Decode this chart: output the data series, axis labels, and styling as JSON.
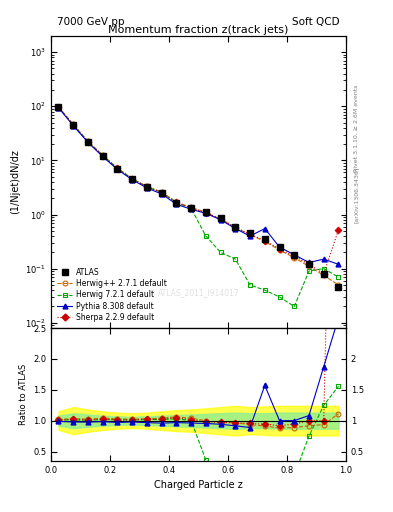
{
  "title_main": "Momentum fraction z(track jets)",
  "header_left": "7000 GeV pp",
  "header_right": "Soft QCD",
  "ylabel_main": "(1/Njet)dN/dz",
  "ylabel_ratio": "Ratio to ATLAS",
  "xlabel": "Charged Particle z",
  "right_label_top": "Rivet 3.1.10, ≥ 2.6M events",
  "right_label_bot": "[arXiv:1306.3436]",
  "watermark": "ATLAS_2011_I914017",
  "xlim": [
    0,
    1.0
  ],
  "ylim_main": [
    0.008,
    2000
  ],
  "ylim_ratio": [
    0.35,
    2.5
  ],
  "atlas_x": [
    0.025,
    0.075,
    0.125,
    0.175,
    0.225,
    0.275,
    0.325,
    0.375,
    0.425,
    0.475,
    0.525,
    0.575,
    0.625,
    0.675,
    0.725,
    0.775,
    0.825,
    0.875,
    0.925,
    0.975
  ],
  "atlas_y": [
    95.0,
    45.0,
    22.0,
    12.0,
    7.0,
    4.5,
    3.2,
    2.5,
    1.6,
    1.3,
    1.1,
    0.85,
    0.6,
    0.45,
    0.35,
    0.25,
    0.18,
    0.12,
    0.08,
    0.045
  ],
  "atlas_yerr": [
    5.0,
    2.5,
    1.2,
    0.6,
    0.35,
    0.22,
    0.16,
    0.12,
    0.08,
    0.065,
    0.055,
    0.042,
    0.03,
    0.023,
    0.018,
    0.013,
    0.009,
    0.006,
    0.004,
    0.003
  ],
  "herwig_x": [
    0.025,
    0.075,
    0.125,
    0.175,
    0.225,
    0.275,
    0.325,
    0.375,
    0.425,
    0.475,
    0.525,
    0.575,
    0.625,
    0.675,
    0.725,
    0.775,
    0.825,
    0.875,
    0.925,
    0.975
  ],
  "herwig_y": [
    97.0,
    46.5,
    22.5,
    12.5,
    7.2,
    4.6,
    3.3,
    2.6,
    1.7,
    1.35,
    1.1,
    0.82,
    0.58,
    0.42,
    0.32,
    0.22,
    0.16,
    0.11,
    0.075,
    0.05
  ],
  "herwig7_x": [
    0.025,
    0.075,
    0.125,
    0.175,
    0.225,
    0.275,
    0.325,
    0.375,
    0.425,
    0.475,
    0.525,
    0.575,
    0.625,
    0.675,
    0.725,
    0.775,
    0.825,
    0.875,
    0.925,
    0.975
  ],
  "herwig7_y": [
    96.0,
    45.5,
    22.2,
    12.2,
    7.1,
    4.55,
    3.25,
    2.55,
    1.65,
    1.3,
    0.4,
    0.2,
    0.15,
    0.05,
    0.04,
    0.03,
    0.02,
    0.09,
    0.1,
    0.07
  ],
  "pythia_x": [
    0.025,
    0.075,
    0.125,
    0.175,
    0.225,
    0.275,
    0.325,
    0.375,
    0.425,
    0.475,
    0.525,
    0.575,
    0.625,
    0.675,
    0.725,
    0.775,
    0.825,
    0.875,
    0.925,
    0.975
  ],
  "pythia_y": [
    94.0,
    44.0,
    21.5,
    11.8,
    6.8,
    4.4,
    3.1,
    2.4,
    1.55,
    1.25,
    1.05,
    0.8,
    0.55,
    0.4,
    0.55,
    0.25,
    0.18,
    0.13,
    0.15,
    0.12
  ],
  "sherpa_x": [
    0.025,
    0.075,
    0.125,
    0.175,
    0.225,
    0.275,
    0.325,
    0.375,
    0.425,
    0.475,
    0.525,
    0.575,
    0.625,
    0.675,
    0.725,
    0.775,
    0.825,
    0.875,
    0.925,
    0.975
  ],
  "sherpa_y": [
    96.0,
    46.0,
    22.3,
    12.3,
    7.1,
    4.55,
    3.28,
    2.55,
    1.68,
    1.32,
    1.08,
    0.83,
    0.58,
    0.43,
    0.33,
    0.23,
    0.17,
    0.12,
    0.08,
    0.52
  ],
  "color_atlas": "#000000",
  "color_herwig": "#cc6600",
  "color_herwig7": "#00aa00",
  "color_pythia": "#0000cc",
  "color_sherpa": "#cc0000",
  "band_green_lo": [
    0.92,
    0.88,
    0.9,
    0.92,
    0.93,
    0.94,
    0.93,
    0.92,
    0.91,
    0.9,
    0.89,
    0.88,
    0.87,
    0.88,
    0.88,
    0.87,
    0.87,
    0.87,
    0.87,
    0.87
  ],
  "band_green_hi": [
    1.08,
    1.12,
    1.1,
    1.08,
    1.07,
    1.06,
    1.07,
    1.08,
    1.09,
    1.1,
    1.11,
    1.12,
    1.13,
    1.12,
    1.12,
    1.13,
    1.13,
    1.13,
    1.13,
    1.13
  ],
  "band_yellow_lo": [
    0.85,
    0.78,
    0.82,
    0.85,
    0.87,
    0.88,
    0.87,
    0.85,
    0.83,
    0.82,
    0.8,
    0.78,
    0.76,
    0.78,
    0.77,
    0.76,
    0.76,
    0.76,
    0.76,
    0.76
  ],
  "band_yellow_hi": [
    1.15,
    1.22,
    1.18,
    1.15,
    1.13,
    1.12,
    1.13,
    1.15,
    1.17,
    1.18,
    1.2,
    1.22,
    1.24,
    1.22,
    1.23,
    1.24,
    1.24,
    1.24,
    1.24,
    1.24
  ]
}
